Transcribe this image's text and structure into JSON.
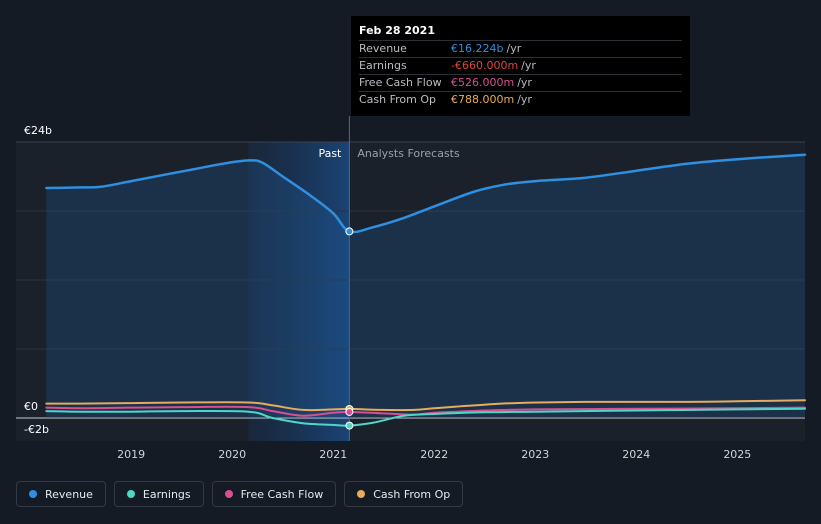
{
  "chart_data": {
    "type": "area",
    "y_tick_labels": [
      {
        "label": "€24b",
        "value": 24
      },
      {
        "label": "€0",
        "value": 0
      },
      {
        "label": "-€2b",
        "value": -2
      }
    ],
    "x_tick_labels": [
      {
        "label": "2019",
        "value": 2019.0
      },
      {
        "label": "2020",
        "value": 2020.0
      },
      {
        "label": "2021",
        "value": 2021.0
      },
      {
        "label": "2022",
        "value": 2022.0
      },
      {
        "label": "2023",
        "value": 2023.0
      },
      {
        "label": "2024",
        "value": 2024.0
      },
      {
        "label": "2025",
        "value": 2025.0
      }
    ],
    "xlim": [
      2017.86,
      2025.67
    ],
    "ylim": [
      -2,
      24
    ],
    "past_label": "Past",
    "forecast_label": "Analysts Forecasts",
    "divider_x": 2021.16,
    "shaded_past_start": 2020.16,
    "series": [
      {
        "name": "Revenue",
        "color": "#2f8fe0",
        "points": [
          [
            2018.16,
            20.0
          ],
          [
            2018.5,
            20.05
          ],
          [
            2018.7,
            20.1
          ],
          [
            2019.0,
            20.6
          ],
          [
            2019.3,
            21.1
          ],
          [
            2019.6,
            21.6
          ],
          [
            2019.9,
            22.1
          ],
          [
            2020.16,
            22.4
          ],
          [
            2020.3,
            22.2
          ],
          [
            2020.5,
            21.0
          ],
          [
            2020.75,
            19.5
          ],
          [
            2021.0,
            17.8
          ],
          [
            2021.16,
            16.224
          ],
          [
            2021.4,
            16.6
          ],
          [
            2021.7,
            17.4
          ],
          [
            2022.0,
            18.4
          ],
          [
            2022.4,
            19.7
          ],
          [
            2022.7,
            20.3
          ],
          [
            2023.0,
            20.6
          ],
          [
            2023.5,
            20.9
          ],
          [
            2024.0,
            21.5
          ],
          [
            2024.5,
            22.1
          ],
          [
            2025.0,
            22.5
          ],
          [
            2025.67,
            22.9
          ]
        ],
        "fill": true
      },
      {
        "name": "Earnings",
        "color": "#4fd6c4",
        "points": [
          [
            2018.16,
            0.6
          ],
          [
            2018.5,
            0.55
          ],
          [
            2019.0,
            0.55
          ],
          [
            2019.5,
            0.6
          ],
          [
            2020.16,
            0.55
          ],
          [
            2020.4,
            0.0
          ],
          [
            2020.7,
            -0.45
          ],
          [
            2021.0,
            -0.6
          ],
          [
            2021.16,
            -0.66
          ],
          [
            2021.4,
            -0.4
          ],
          [
            2021.7,
            0.2
          ],
          [
            2022.0,
            0.35
          ],
          [
            2022.5,
            0.5
          ],
          [
            2023.0,
            0.55
          ],
          [
            2024.0,
            0.65
          ],
          [
            2025.0,
            0.75
          ],
          [
            2025.67,
            0.8
          ]
        ]
      },
      {
        "name": "Free Cash Flow",
        "color": "#d64f92",
        "points": [
          [
            2018.16,
            0.9
          ],
          [
            2018.5,
            0.85
          ],
          [
            2019.0,
            0.9
          ],
          [
            2019.5,
            0.95
          ],
          [
            2020.16,
            0.95
          ],
          [
            2020.4,
            0.6
          ],
          [
            2020.7,
            0.2
          ],
          [
            2021.0,
            0.45
          ],
          [
            2021.16,
            0.526
          ],
          [
            2021.5,
            0.4
          ],
          [
            2021.8,
            0.3
          ],
          [
            2022.0,
            0.45
          ],
          [
            2022.5,
            0.65
          ],
          [
            2023.0,
            0.75
          ],
          [
            2024.0,
            0.8
          ],
          [
            2025.0,
            0.85
          ],
          [
            2025.67,
            0.9
          ]
        ]
      },
      {
        "name": "Cash From Op",
        "color": "#e8ab5c",
        "points": [
          [
            2018.16,
            1.25
          ],
          [
            2018.5,
            1.25
          ],
          [
            2019.0,
            1.3
          ],
          [
            2019.5,
            1.35
          ],
          [
            2020.16,
            1.35
          ],
          [
            2020.4,
            1.1
          ],
          [
            2020.7,
            0.7
          ],
          [
            2021.0,
            0.75
          ],
          [
            2021.16,
            0.788
          ],
          [
            2021.5,
            0.7
          ],
          [
            2021.8,
            0.7
          ],
          [
            2022.0,
            0.85
          ],
          [
            2022.4,
            1.1
          ],
          [
            2022.8,
            1.3
          ],
          [
            2023.5,
            1.4
          ],
          [
            2024.5,
            1.4
          ],
          [
            2025.0,
            1.45
          ],
          [
            2025.67,
            1.55
          ]
        ]
      }
    ]
  },
  "tooltip": {
    "date": "Feb 28 2021",
    "rows": [
      {
        "label": "Revenue",
        "value": "€16.224b",
        "unit": "/yr",
        "color": "#2f8fe0"
      },
      {
        "label": "Earnings",
        "value": "-€660.000m",
        "unit": "/yr",
        "color": "#e0443c"
      },
      {
        "label": "Free Cash Flow",
        "value": "€526.000m",
        "unit": "/yr",
        "color": "#d64f92"
      },
      {
        "label": "Cash From Op",
        "value": "€788.000m",
        "unit": "/yr",
        "color": "#e8ab5c"
      }
    ]
  },
  "legend": [
    {
      "label": "Revenue",
      "color": "#2f8fe0"
    },
    {
      "label": "Earnings",
      "color": "#4fd6c4"
    },
    {
      "label": "Free Cash Flow",
      "color": "#d64f92"
    },
    {
      "label": "Cash From Op",
      "color": "#e8ab5c"
    }
  ]
}
